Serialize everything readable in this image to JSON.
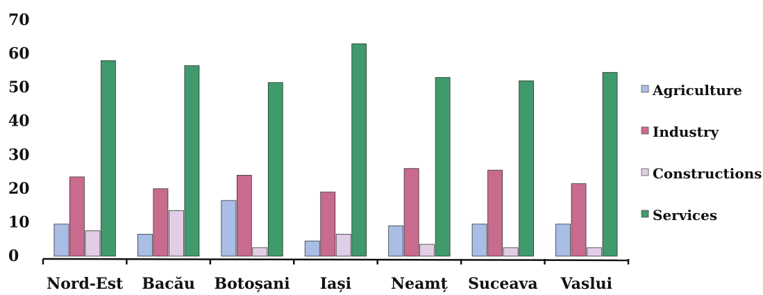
{
  "chart_data": {
    "type": "bar",
    "categories": [
      "Nord-Est",
      "Bacău",
      "Botoșani",
      "Iași",
      "Neamț",
      "Suceava",
      "Vaslui"
    ],
    "series": [
      {
        "name": "Agriculture",
        "color": "#a9bde6",
        "values": [
          9.5,
          6.5,
          16.5,
          4.5,
          9,
          9.5,
          9.5
        ]
      },
      {
        "name": "Industry",
        "color": "#c96b8e",
        "values": [
          23.5,
          20,
          24,
          19,
          26,
          25.5,
          21.5
        ]
      },
      {
        "name": "Constructions",
        "color": "#e2cde6",
        "values": [
          7.5,
          13.5,
          2.5,
          6.5,
          3.5,
          2.5,
          2.5
        ]
      },
      {
        "name": "Services",
        "color": "#3f9a6c",
        "values": [
          58,
          56.5,
          51.5,
          63,
          53,
          52,
          54.5
        ]
      }
    ],
    "yticks": [
      "0",
      "10",
      "20",
      "30",
      "40",
      "50",
      "60",
      "70"
    ],
    "ylim": [
      0,
      70
    ],
    "legend_position": "right",
    "grid": false
  }
}
